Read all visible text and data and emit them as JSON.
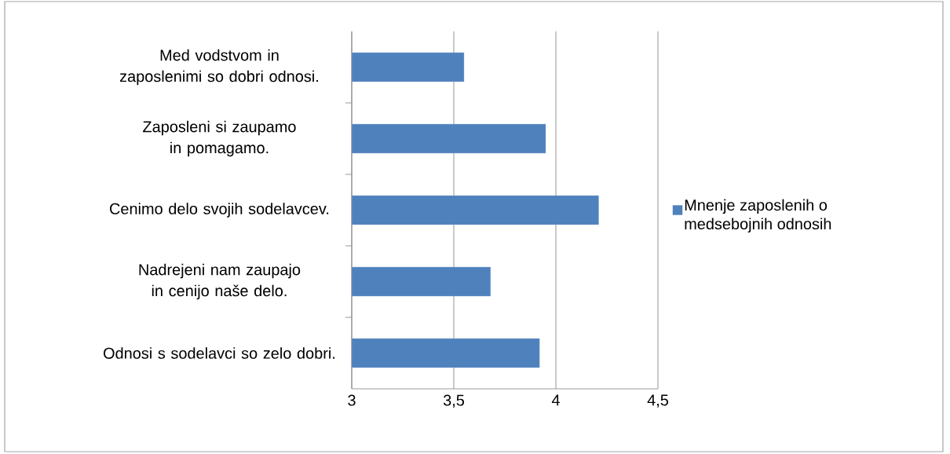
{
  "chart_data": {
    "type": "bar",
    "orientation": "horizontal",
    "categories": [
      "Med vodstvom in zaposlenimi so dobri odnosi.",
      "Zaposleni si zaupamo in pomagamo.",
      "Cenimo delo svojih sodelavcev.",
      "Nadrejeni nam zaupajo in cenijo naše delo.",
      "Odnosi s sodelavci so zelo dobri."
    ],
    "series": [
      {
        "name": "Mnenje zaposlenih o medsebojnih odnosih",
        "color": "#4f81bd",
        "values": [
          3.55,
          3.95,
          4.21,
          3.68,
          3.92
        ]
      }
    ],
    "xlim": [
      3,
      4.5
    ],
    "xticks": [
      3,
      {
        "value": 3.5,
        "label": "3,5"
      },
      4,
      {
        "value": 4.5,
        "label": "4,5"
      }
    ],
    "grid": "x",
    "legend": "right"
  }
}
